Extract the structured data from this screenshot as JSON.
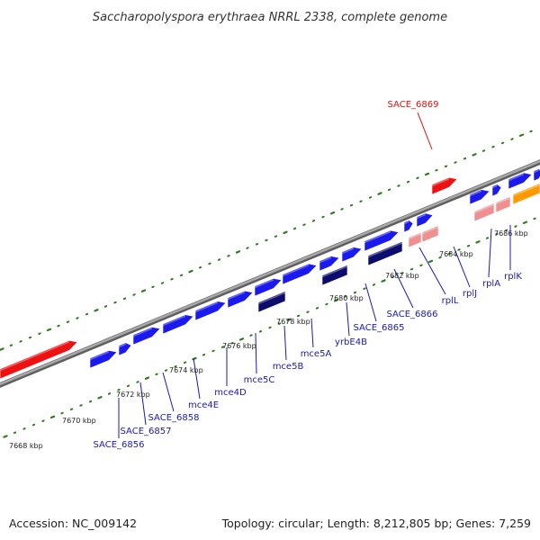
{
  "title": "Saccharopolyspora erythraea NRRL 2338, complete genome",
  "footer": {
    "accession": "Accession: NC_009142",
    "summary": "Topology: circular; Length: 8,212,805 bp; Genes: 7,259"
  },
  "colors": {
    "backbone": "#8a8a8a",
    "ticks": "#2e7d1e",
    "gene_blue": "#1a1aee",
    "gene_navy": "#0c0c6e",
    "gene_red": "#ee1111",
    "gene_pink": "#ef8f8f",
    "gene_orange": "#ff9900",
    "label_blue": "#1a1ab0",
    "label_red": "#dd1111",
    "leader": "#1a1ab0"
  },
  "ticks": [
    {
      "label": "7668 kbp"
    },
    {
      "label": "7670 kbp"
    },
    {
      "label": "7672 kbp"
    },
    {
      "label": "7674 kbp"
    },
    {
      "label": "7676 kbp"
    },
    {
      "label": "7678 kbp"
    },
    {
      "label": "7680 kbp"
    },
    {
      "label": "7682 kbp"
    },
    {
      "label": "7684 kbp"
    },
    {
      "label": "7686 kbp"
    }
  ],
  "gene_labels": [
    {
      "name": "SACE_6856"
    },
    {
      "name": "SACE_6857"
    },
    {
      "name": "SACE_6858"
    },
    {
      "name": "mce4E"
    },
    {
      "name": "mce4D"
    },
    {
      "name": "mce5C"
    },
    {
      "name": "mce5B"
    },
    {
      "name": "mce5A"
    },
    {
      "name": "yrbE4B"
    },
    {
      "name": "SACE_6865"
    },
    {
      "name": "SACE_6866"
    },
    {
      "name": "rplL"
    },
    {
      "name": "rplJ"
    },
    {
      "name": "rplA"
    },
    {
      "name": "rplK"
    },
    {
      "name": "SACE_6869"
    }
  ]
}
